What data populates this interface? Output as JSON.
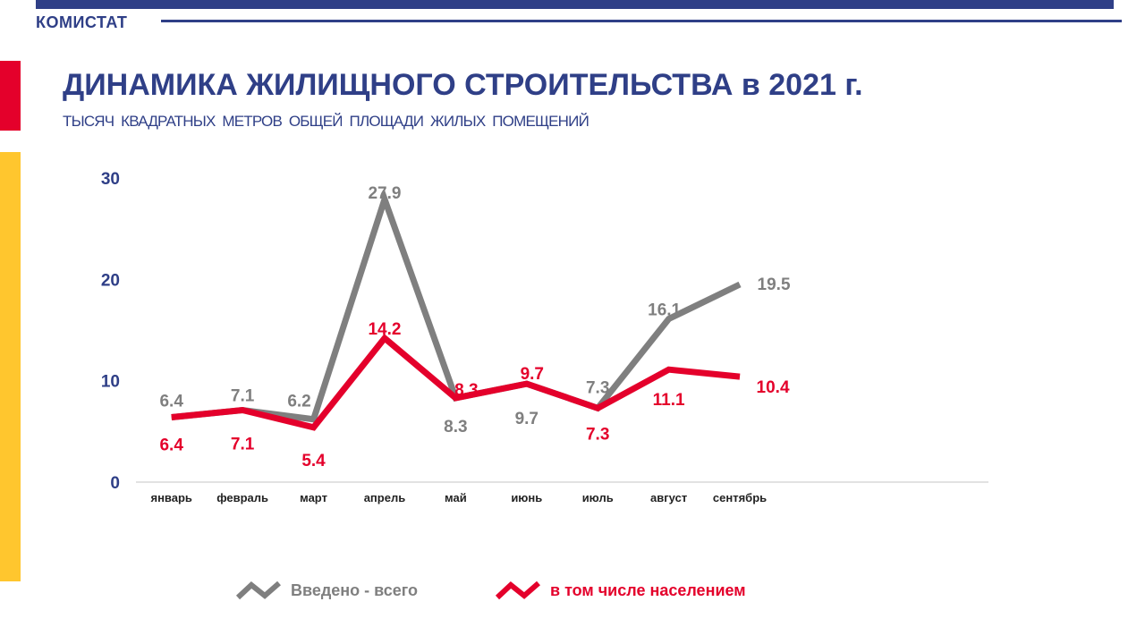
{
  "header": {
    "brand": "КОМИСТАТ",
    "title": "ДИНАМИКА ЖИЛИЩНОГО СТРОИТЕЛЬСТВА в 2021 г.",
    "subtitle": "ТЫСЯЧ  КВАДРАТНЫХ  МЕТРОВ  ОБЩЕЙ  ПЛОЩАДИ  ЖИЛЫХ  ПОМЕЩЕНИЙ"
  },
  "colors": {
    "brand_blue": "#2f3f87",
    "accent_red": "#e4002b",
    "accent_yellow": "#ffc62e",
    "series_total": "#7f7f7f",
    "series_population": "#e4002b"
  },
  "chart_data": {
    "type": "line",
    "title": "ДИНАМИКА ЖИЛИЩНОГО СТРОИТЕЛЬСТВА в 2021 г.",
    "categories": [
      "январь",
      "февраль",
      "март",
      "апрель",
      "май",
      "июнь",
      "июль",
      "август",
      "сентябрь"
    ],
    "category_slots": 12,
    "ylim": [
      0,
      30
    ],
    "yticks": [
      0,
      10,
      20,
      30
    ],
    "grid": false,
    "legend_position": "bottom",
    "series": [
      {
        "name": "Введено - всего",
        "color": "#7f7f7f",
        "label_position": "above",
        "values": [
          6.4,
          7.1,
          6.2,
          27.9,
          8.3,
          9.7,
          7.3,
          16.1,
          19.5
        ]
      },
      {
        "name": "в том числе населением",
        "color": "#e4002b",
        "label_position": "below",
        "values": [
          6.4,
          7.1,
          5.4,
          14.2,
          8.3,
          9.7,
          7.3,
          11.1,
          10.4
        ]
      }
    ]
  }
}
